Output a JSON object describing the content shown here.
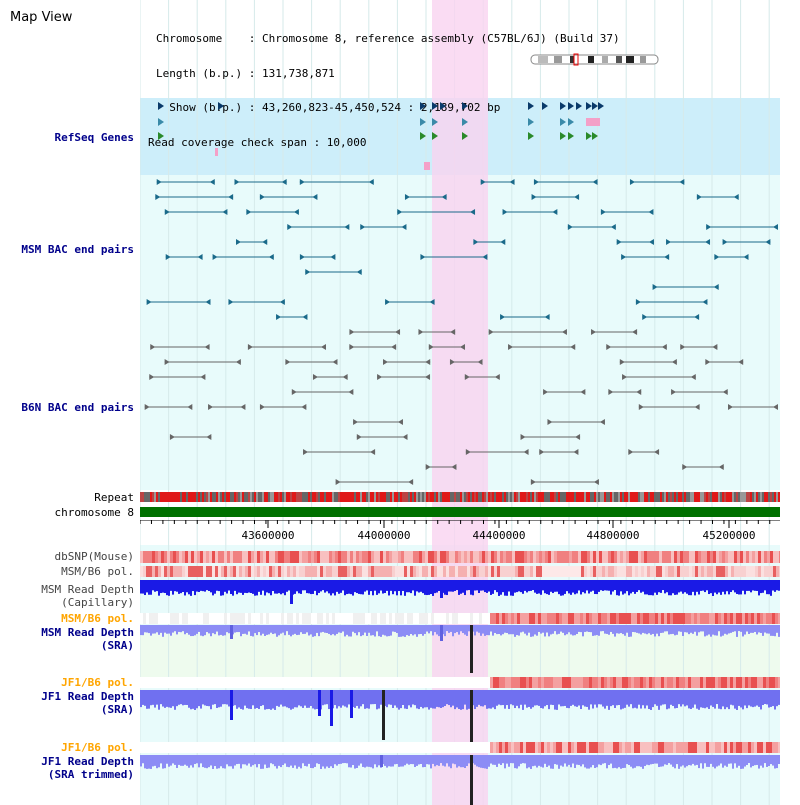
{
  "header": {
    "title": "Map View",
    "line1": "Chromosome    : Chromosome 8, reference assembly (C57BL/6J) (Build 37)",
    "line2": "Length (b.p.) : 131,738,871",
    "line3": "  Show (b.p.) : 43,260,823-45,450,524 : 2,189,702 bp",
    "line4": "Read coverage check span : 10,000"
  },
  "tracks": {
    "refseq": "RefSeq Genes",
    "msm_bac": "MSM BAC end pairs",
    "b6n_bac": "B6N BAC end pairs",
    "repeat": "Repeat",
    "chromosome": "chromosome 8",
    "dbsnp": "dbSNP(Mouse)",
    "msm_b6_pol_1": "MSM/B6 pol.",
    "msm_depth_cap": "MSM Read Depth\n(Capillary)",
    "msm_b6_pol_2": "MSM/B6 pol.",
    "msm_depth_sra": "MSM Read Depth\n(SRA)",
    "jf1_b6_pol_1": "JF1/B6 pol.",
    "jf1_depth_sra": "JF1 Read Depth\n(SRA)",
    "jf1_b6_pol_2": "JF1/B6 pol.",
    "jf1_depth_trim": "JF1 Read Depth\n(SRA trimmed)"
  },
  "axis": {
    "ticks": [
      "43600000",
      "44000000",
      "44400000",
      "44800000",
      "45200000"
    ]
  },
  "colors": {
    "refseq_bg": "#cdeefa",
    "track_bg": "#e8fbfb",
    "highlight": "#f9d3f0",
    "chromosome": "#007000",
    "depth_blue": "#1a1ae6",
    "depth_light": "#8c8cf5",
    "pol_red": "#e8202a",
    "pol_pink": "#f5a0a4"
  }
}
